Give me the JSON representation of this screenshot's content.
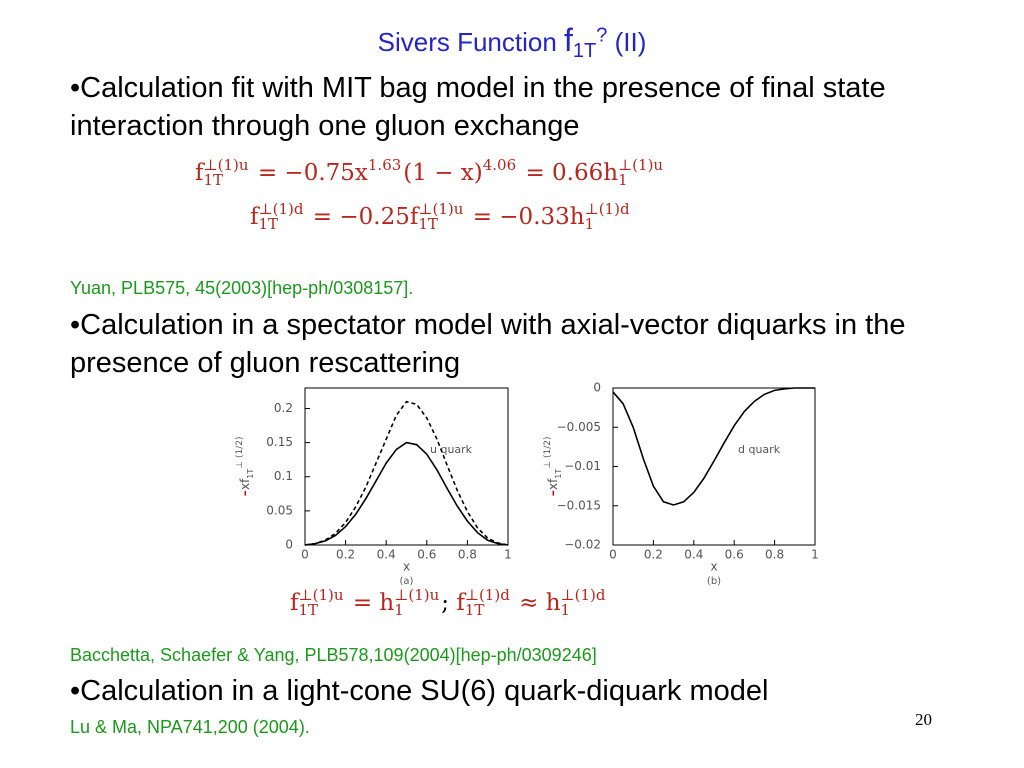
{
  "title": {
    "text": "Sivers Function ",
    "symbol": "f",
    "sub": "1T",
    "sup": "?",
    "suffix": " (II)"
  },
  "bullets": [
    "•Calculation fit with MIT bag model in the presence of final state interaction through one gluon exchange",
    "•Calculation in a spectator model with axial-vector diquarks in the presence of gluon rescattering",
    "•Calculation in a light-cone SU(6) quark-diquark model"
  ],
  "references": [
    "Yuan, PLB575, 45(2003)[hep-ph/0308157].",
    "Bacchetta, Schaefer & Yang, PLB578,109(2004)[hep-ph/0309246]",
    "Lu & Ma, NPA741,200 (2004)."
  ],
  "equations": [
    [
      {
        "text": "f",
        "sup": "⊥(1)u",
        "sub": "1T"
      },
      {
        "text": " = −0.75x",
        "sup": "1.63"
      },
      {
        "text": "(1 − x)",
        "sup": "4.06"
      },
      {
        "text": " = 0.66h",
        "sup": "⊥(1)u",
        "sub": "1"
      }
    ],
    [
      {
        "text": "f",
        "sup": "⊥(1)d",
        "sub": "1T"
      },
      {
        "text": " = −0.25f",
        "sup": "⊥(1)u",
        "sub": "1T"
      },
      {
        "text": " = −0.33h",
        "sup": "⊥(1)d",
        "sub": "1"
      }
    ],
    [
      {
        "text": "f",
        "sup": "⊥(1)u",
        "sub": "1T"
      },
      {
        "text": " = h",
        "sup": "⊥(1)u",
        "sub": "1"
      },
      {
        "text": "; ",
        "color": "#000000"
      },
      {
        "text": "f",
        "sup": "⊥(1)d",
        "sub": "1T"
      },
      {
        "text": " ≈ h",
        "sup": "⊥(1)d",
        "sub": "1"
      }
    ]
  ],
  "page_number": "20",
  "chart_data": [
    {
      "type": "line",
      "annotation": "u quark",
      "x_label": "x",
      "panel": "(a)",
      "y_label_prefix": "-",
      "y_label": "xf",
      "y_label_sup": "⊥ (1/2)",
      "y_label_sub": "1T",
      "xlim": [
        0,
        1
      ],
      "xticks": [
        0,
        0.2,
        0.4,
        0.6,
        0.8,
        1
      ],
      "ylim": [
        0,
        0.23
      ],
      "yticks": [
        0,
        0.05,
        0.1,
        0.15,
        0.2
      ],
      "x": [
        0,
        0.05,
        0.1,
        0.15,
        0.2,
        0.25,
        0.3,
        0.35,
        0.4,
        0.45,
        0.5,
        0.55,
        0.6,
        0.65,
        0.7,
        0.75,
        0.8,
        0.85,
        0.9,
        0.95,
        1
      ],
      "series": [
        {
          "color": "#000000",
          "dashed": false,
          "values": [
            0,
            0.002,
            0.006,
            0.014,
            0.027,
            0.045,
            0.068,
            0.094,
            0.12,
            0.14,
            0.15,
            0.147,
            0.133,
            0.11,
            0.083,
            0.057,
            0.035,
            0.018,
            0.007,
            0.002,
            0
          ]
        },
        {
          "color": "#000000",
          "dashed": true,
          "values": [
            0,
            0.002,
            0.007,
            0.017,
            0.033,
            0.056,
            0.085,
            0.12,
            0.155,
            0.19,
            0.21,
            0.206,
            0.186,
            0.155,
            0.117,
            0.08,
            0.049,
            0.025,
            0.01,
            0.003,
            0
          ]
        }
      ]
    },
    {
      "type": "line",
      "annotation": "d quark",
      "x_label": "x",
      "panel": "(b)",
      "y_label_prefix": "-",
      "y_label": "xf",
      "y_label_sup": "⊥ (1/2)",
      "y_label_sub": "1T",
      "xlim": [
        0,
        1
      ],
      "xticks": [
        0,
        0.2,
        0.4,
        0.6,
        0.8,
        1
      ],
      "ylim": [
        -0.02,
        0
      ],
      "yticks": [
        0,
        {
          "value": -0.005,
          "label": "−0.005"
        },
        {
          "value": -0.01,
          "label": "−0.01"
        },
        {
          "value": -0.015,
          "label": "−0.015"
        },
        {
          "value": -0.02,
          "label": "−0.02"
        }
      ],
      "x": [
        0,
        0.05,
        0.1,
        0.15,
        0.2,
        0.25,
        0.3,
        0.35,
        0.4,
        0.45,
        0.5,
        0.55,
        0.6,
        0.65,
        0.7,
        0.75,
        0.8,
        0.85,
        0.9,
        0.95,
        1
      ],
      "series": [
        {
          "color": "#000000",
          "dashed": false,
          "values": [
            -0.0005,
            -0.002,
            -0.005,
            -0.009,
            -0.0125,
            -0.0145,
            -0.0149,
            -0.0145,
            -0.0133,
            -0.0115,
            -0.0093,
            -0.007,
            -0.0048,
            -0.003,
            -0.0017,
            -0.0008,
            -0.0003,
            -0.0001,
            0,
            0,
            0
          ]
        }
      ]
    }
  ]
}
